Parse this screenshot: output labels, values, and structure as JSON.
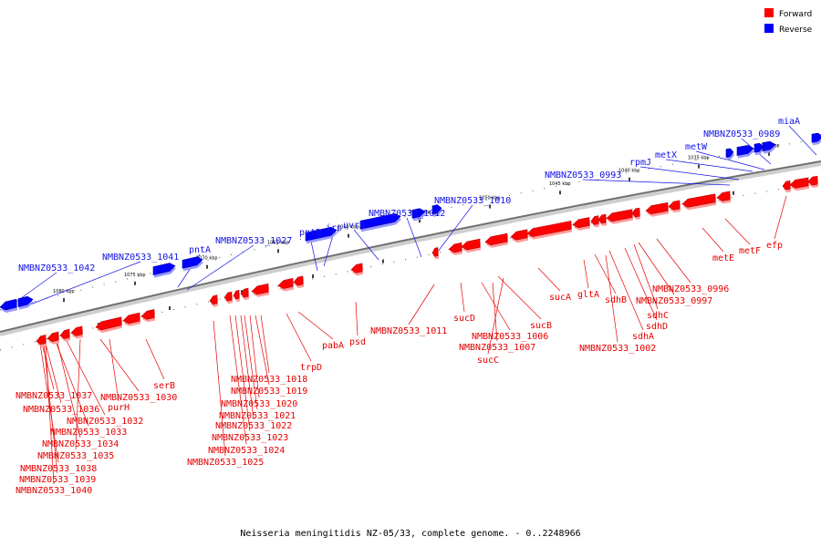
{
  "caption": "Neisseria meningitidis NZ-05/33, complete genome. - 0..2248966",
  "legend": [
    {
      "label": "Forward",
      "color": "#ff0000"
    },
    {
      "label": "Reverse",
      "color": "#0000ff"
    }
  ],
  "colors": {
    "forward": "#ff0000",
    "forward_dark": "#b40000",
    "forward_shade": "#ff9a9a",
    "reverse": "#0000ff",
    "reverse_dark": "#0000a8",
    "reverse_shade": "#9a9aff",
    "forward_label": "#e60000",
    "reverse_label": "#1414e6"
  },
  "ticks": [
    "1080 kbp",
    "1075 kbp",
    "1070 kbp",
    "1065 kbp",
    "1060 kbp",
    "1055 kbp",
    "1050 kbp",
    "1045 kbp",
    "1040 kbp",
    "1035 kbp",
    "1030 kbp"
  ],
  "reverse_genes": [
    "NMBNZ0533_1042",
    "NMBNZ0533_1041",
    "pntA",
    "NMBNZ0533_1027",
    "pntB",
    "irp",
    "uvrA",
    "NMBNZ0533_1012",
    "NMBNZ0533_1010",
    "NMBNZ0533_0993",
    "rpmJ",
    "metX",
    "metW",
    "NMBNZ0533_0989",
    "miaA"
  ],
  "forward_genes": [
    "NMBNZ0533_1037",
    "NMBNZ0533_1036",
    "NMBNZ0533_1030",
    "purH",
    "NMBNZ0533_1032",
    "NMBNZ0533_1033",
    "NMBNZ0533_1034",
    "NMBNZ0533_1035",
    "NMBNZ0533_1038",
    "NMBNZ0533_1039",
    "NMBNZ0533_1040",
    "serB",
    "NMBNZ0533_1018",
    "NMBNZ0533_1019",
    "NMBNZ0533_1020",
    "NMBNZ0533_1021",
    "NMBNZ0533_1022",
    "NMBNZ0533_1023",
    "NMBNZ0533_1024",
    "NMBNZ0533_1025",
    "trpD",
    "pabA",
    "psd",
    "NMBNZ0533_1011",
    "sucD",
    "NMBNZ0533_1006",
    "NMBNZ0533_1007",
    "sucC",
    "sucB",
    "sucA",
    "gltA",
    "sdhB",
    "NMBNZ0533_1002",
    "sdhA",
    "sdhD",
    "sdhC",
    "NMBNZ0533_0997",
    "NMBNZ0533_0996",
    "metE",
    "metF",
    "efp"
  ]
}
